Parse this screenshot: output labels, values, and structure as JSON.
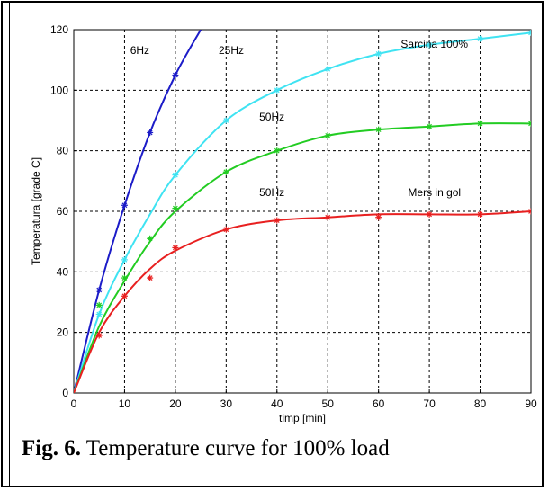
{
  "caption": {
    "label": "Fig. 6.",
    "text": "Temperature curve for 100% load"
  },
  "chart_data": {
    "type": "line",
    "xlabel": "timp [min]",
    "ylabel": "Temperatura [grade C]",
    "xlim": [
      0,
      90
    ],
    "ylim": [
      0,
      120
    ],
    "xticks": [
      0,
      10,
      20,
      30,
      40,
      50,
      60,
      70,
      80,
      90
    ],
    "yticks": [
      0,
      20,
      40,
      60,
      80,
      100,
      120
    ],
    "grid": true,
    "series": [
      {
        "color": "#1c1cc8",
        "x": [
          0,
          5,
          10,
          15,
          20,
          25
        ],
        "y": [
          0,
          34,
          62,
          86,
          105,
          120
        ],
        "markers": [
          [
            5,
            34
          ],
          [
            10,
            62
          ],
          [
            15,
            86
          ],
          [
            20,
            105
          ]
        ]
      },
      {
        "color": "#3fe3f2",
        "x": [
          0,
          5,
          10,
          15,
          20,
          30,
          40,
          50,
          60,
          70,
          80,
          90
        ],
        "y": [
          0,
          26,
          44,
          59,
          72,
          90,
          100,
          107,
          112,
          115,
          117,
          119
        ],
        "markers": [
          [
            5,
            26
          ],
          [
            10,
            44
          ],
          [
            20,
            72
          ],
          [
            30,
            90
          ],
          [
            40,
            100
          ],
          [
            50,
            107
          ],
          [
            60,
            112
          ],
          [
            70,
            115
          ],
          [
            80,
            117
          ],
          [
            90,
            119
          ]
        ]
      },
      {
        "color": "#22cc22",
        "x": [
          0,
          5,
          10,
          15,
          20,
          30,
          40,
          50,
          60,
          70,
          80,
          90
        ],
        "y": [
          0,
          22,
          37,
          50,
          60,
          73,
          80,
          85,
          87,
          88,
          89,
          89
        ],
        "markers": [
          [
            5,
            29
          ],
          [
            10,
            38
          ],
          [
            15,
            51
          ],
          [
            20,
            61
          ],
          [
            30,
            73
          ],
          [
            40,
            80
          ],
          [
            50,
            85
          ],
          [
            60,
            87
          ],
          [
            70,
            88
          ],
          [
            80,
            89
          ],
          [
            90,
            89
          ]
        ]
      },
      {
        "color": "#e82020",
        "x": [
          0,
          5,
          10,
          15,
          20,
          30,
          40,
          50,
          60,
          70,
          80,
          90
        ],
        "y": [
          0,
          20,
          32,
          41,
          47,
          54,
          57,
          58,
          59,
          59,
          59,
          60
        ],
        "markers": [
          [
            5,
            19
          ],
          [
            10,
            32
          ],
          [
            15,
            38
          ],
          [
            20,
            48
          ],
          [
            30,
            54
          ],
          [
            40,
            57
          ],
          [
            50,
            58
          ],
          [
            60,
            58
          ],
          [
            70,
            59
          ],
          [
            80,
            59
          ],
          [
            90,
            60
          ]
        ]
      }
    ],
    "annotations": [
      {
        "text": "6Hz",
        "x": 13,
        "y": 112
      },
      {
        "text": "25Hz",
        "x": 31,
        "y": 112
      },
      {
        "text": "Sarcina 100%",
        "x": 71,
        "y": 114
      },
      {
        "text": "50Hz",
        "x": 39,
        "y": 90
      },
      {
        "text": "50Hz",
        "x": 39,
        "y": 65
      },
      {
        "text": "Mers in gol",
        "x": 71,
        "y": 65
      }
    ]
  }
}
